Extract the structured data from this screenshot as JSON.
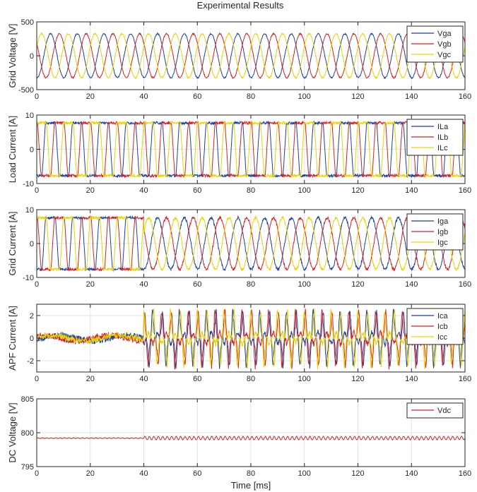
{
  "figure": {
    "title": "Experimental Results",
    "xlabel": "Time [ms]"
  },
  "chart_data": [
    {
      "type": "line",
      "ylabel": "Grid Voltage [V]",
      "xlim": [
        0,
        160
      ],
      "ylim": [
        -500,
        500
      ],
      "xticks": [
        0,
        20,
        40,
        60,
        80,
        100,
        120,
        140,
        160
      ],
      "yticks": [
        -500,
        0,
        500
      ],
      "grid": true,
      "legend_position": "top-right",
      "series": [
        {
          "name": "Vga",
          "color": "#1f3f9a",
          "shape": "sine",
          "amplitude": 325,
          "frequency_hz": 100,
          "phase_deg": -95,
          "noise": 10
        },
        {
          "name": "Vgb",
          "color": "#d62020",
          "shape": "sine",
          "amplitude": 325,
          "frequency_hz": 100,
          "phase_deg": 145,
          "noise": 10
        },
        {
          "name": "Vgc",
          "color": "#e6d400",
          "shape": "sine",
          "amplitude": 325,
          "frequency_hz": 100,
          "phase_deg": 25,
          "noise": 10
        }
      ]
    },
    {
      "type": "line",
      "ylabel": "Load Current [A]",
      "xlim": [
        0,
        160
      ],
      "ylim": [
        -10,
        10
      ],
      "xticks": [
        0,
        20,
        40,
        60,
        80,
        100,
        120,
        140,
        160
      ],
      "yticks": [
        -10,
        0,
        10
      ],
      "grid": true,
      "legend_position": "top-right",
      "series": [
        {
          "name": "ILa",
          "color": "#1f3f9a",
          "shape": "six-step",
          "amplitude": 7.7,
          "frequency_hz": 100,
          "phase_deg": -95,
          "noise": 0.4
        },
        {
          "name": "ILb",
          "color": "#d62020",
          "shape": "six-step",
          "amplitude": 7.7,
          "frequency_hz": 100,
          "phase_deg": 145,
          "noise": 0.4
        },
        {
          "name": "ILc",
          "color": "#e6d400",
          "shape": "six-step",
          "amplitude": 7.7,
          "frequency_hz": 100,
          "phase_deg": 25,
          "noise": 0.4
        }
      ]
    },
    {
      "type": "line",
      "ylabel": "Grid Current [A]",
      "xlim": [
        0,
        160
      ],
      "ylim": [
        -10,
        10
      ],
      "xticks": [
        0,
        20,
        40,
        60,
        80,
        100,
        120,
        140,
        160
      ],
      "yticks": [
        -10,
        0,
        10
      ],
      "grid": true,
      "legend_position": "top-right",
      "compensation_on_ms": 40,
      "series": [
        {
          "name": "Iga",
          "color": "#1f3f9a",
          "shape": "six-step-then-sine",
          "amplitude": 7.6,
          "frequency_hz": 100,
          "phase_deg": -95,
          "noise": 0.4
        },
        {
          "name": "Igb",
          "color": "#d62020",
          "shape": "six-step-then-sine",
          "amplitude": 7.6,
          "frequency_hz": 100,
          "phase_deg": 145,
          "noise": 0.4
        },
        {
          "name": "Igc",
          "color": "#e6d400",
          "shape": "six-step-then-sine",
          "amplitude": 7.6,
          "frequency_hz": 100,
          "phase_deg": 25,
          "noise": 0.4
        }
      ]
    },
    {
      "type": "line",
      "ylabel": "APF Current [A]",
      "xlim": [
        0,
        160
      ],
      "ylim": [
        -3,
        3
      ],
      "xticks": [
        0,
        20,
        40,
        60,
        80,
        100,
        120,
        140,
        160
      ],
      "yticks": [
        -2,
        0,
        2
      ],
      "grid": true,
      "legend_position": "top-right",
      "compensation_on_ms": 40,
      "series": [
        {
          "name": "Ica",
          "color": "#1f3f9a",
          "shape": "harmonic-after-on",
          "amplitude": 2.1,
          "idle_amplitude": 0.25,
          "frequency_hz": 100,
          "phase_deg": -95,
          "noise": 0.25
        },
        {
          "name": "Icb",
          "color": "#d62020",
          "shape": "harmonic-after-on",
          "amplitude": 2.1,
          "idle_amplitude": 0.25,
          "frequency_hz": 100,
          "phase_deg": 145,
          "noise": 0.25
        },
        {
          "name": "Icc",
          "color": "#e6d400",
          "shape": "harmonic-after-on",
          "amplitude": 2.1,
          "idle_amplitude": 0.25,
          "frequency_hz": 100,
          "phase_deg": 25,
          "noise": 0.25
        }
      ]
    },
    {
      "type": "line",
      "ylabel": "DC Voltage [V]",
      "xlim": [
        0,
        160
      ],
      "ylim": [
        795,
        805
      ],
      "xticks": [
        0,
        20,
        40,
        60,
        80,
        100,
        120,
        140,
        160
      ],
      "yticks": [
        795,
        800,
        805
      ],
      "grid": true,
      "legend_position": "top-right",
      "series": [
        {
          "name": "Vdc",
          "color": "#d62020",
          "shape": "dc-ripple",
          "offset": 799.2,
          "ripple_before": 0.05,
          "ripple_after": 0.25,
          "frequency_hz": 600,
          "compensation_on_ms": 40,
          "noise": 0.03
        }
      ]
    }
  ]
}
